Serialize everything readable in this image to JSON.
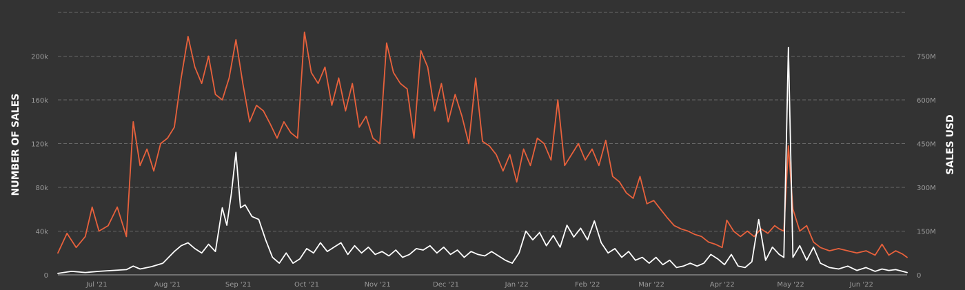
{
  "chart_data": {
    "type": "line",
    "title": "",
    "ylabel_left": "NUMBER OF SALES",
    "ylabel_right": "SALES USD",
    "x_tick_labels": [
      "Jul '21",
      "Aug '21",
      "Sep '21",
      "Oct '21",
      "Nov '21",
      "Dec '21",
      "Jan '22",
      "Feb '22",
      "Mar '22",
      "Apr '22",
      "May '22",
      "Jun '22"
    ],
    "x_tick_dates": [
      "2021-07-01",
      "2021-08-01",
      "2021-09-01",
      "2021-10-01",
      "2021-11-01",
      "2021-12-01",
      "2022-01-01",
      "2022-02-01",
      "2022-03-01",
      "2022-04-01",
      "2022-05-01",
      "2022-06-01"
    ],
    "x_range": [
      "2021-06-14",
      "2022-06-21"
    ],
    "y_left": {
      "ticks": [
        0,
        40000,
        80000,
        120000,
        160000,
        200000
      ],
      "tick_labels": [
        "0",
        "40k",
        "80k",
        "120k",
        "160k",
        "200k"
      ],
      "range": [
        0,
        240000
      ]
    },
    "y_right": {
      "ticks": [
        0,
        150000000,
        300000000,
        450000000,
        600000000,
        750000000
      ],
      "tick_labels": [
        "0",
        "150M",
        "300M",
        "450M",
        "600M",
        "750M"
      ],
      "range": [
        0,
        900000000
      ]
    },
    "grid": true,
    "legend": "none",
    "series": [
      {
        "axis": "left",
        "color": "#e8613c",
        "points": [
          [
            "2021-06-14",
            20000
          ],
          [
            "2021-06-18",
            38000
          ],
          [
            "2021-06-22",
            25000
          ],
          [
            "2021-06-26",
            35000
          ],
          [
            "2021-06-29",
            62000
          ],
          [
            "2021-07-02",
            40000
          ],
          [
            "2021-07-06",
            45000
          ],
          [
            "2021-07-10",
            62000
          ],
          [
            "2021-07-14",
            35000
          ],
          [
            "2021-07-17",
            140000
          ],
          [
            "2021-07-20",
            100000
          ],
          [
            "2021-07-23",
            115000
          ],
          [
            "2021-07-26",
            95000
          ],
          [
            "2021-07-29",
            120000
          ],
          [
            "2021-08-01",
            125000
          ],
          [
            "2021-08-04",
            135000
          ],
          [
            "2021-08-07",
            180000
          ],
          [
            "2021-08-10",
            218000
          ],
          [
            "2021-08-13",
            190000
          ],
          [
            "2021-08-16",
            175000
          ],
          [
            "2021-08-19",
            200000
          ],
          [
            "2021-08-22",
            165000
          ],
          [
            "2021-08-25",
            160000
          ],
          [
            "2021-08-28",
            180000
          ],
          [
            "2021-08-31",
            215000
          ],
          [
            "2021-09-03",
            175000
          ],
          [
            "2021-09-06",
            140000
          ],
          [
            "2021-09-09",
            155000
          ],
          [
            "2021-09-12",
            150000
          ],
          [
            "2021-09-15",
            138000
          ],
          [
            "2021-09-18",
            125000
          ],
          [
            "2021-09-21",
            140000
          ],
          [
            "2021-09-24",
            130000
          ],
          [
            "2021-09-27",
            125000
          ],
          [
            "2021-09-30",
            222000
          ],
          [
            "2021-10-03",
            185000
          ],
          [
            "2021-10-06",
            175000
          ],
          [
            "2021-10-09",
            190000
          ],
          [
            "2021-10-12",
            155000
          ],
          [
            "2021-10-15",
            180000
          ],
          [
            "2021-10-18",
            150000
          ],
          [
            "2021-10-21",
            175000
          ],
          [
            "2021-10-24",
            135000
          ],
          [
            "2021-10-27",
            145000
          ],
          [
            "2021-10-30",
            125000
          ],
          [
            "2021-11-02",
            120000
          ],
          [
            "2021-11-05",
            212000
          ],
          [
            "2021-11-08",
            185000
          ],
          [
            "2021-11-11",
            175000
          ],
          [
            "2021-11-14",
            170000
          ],
          [
            "2021-11-17",
            125000
          ],
          [
            "2021-11-20",
            205000
          ],
          [
            "2021-11-23",
            190000
          ],
          [
            "2021-11-26",
            150000
          ],
          [
            "2021-11-29",
            175000
          ],
          [
            "2021-12-02",
            140000
          ],
          [
            "2021-12-05",
            165000
          ],
          [
            "2021-12-08",
            145000
          ],
          [
            "2021-12-11",
            120000
          ],
          [
            "2021-12-14",
            180000
          ],
          [
            "2021-12-17",
            122000
          ],
          [
            "2021-12-20",
            118000
          ],
          [
            "2021-12-23",
            110000
          ],
          [
            "2021-12-26",
            95000
          ],
          [
            "2021-12-29",
            110000
          ],
          [
            "2022-01-01",
            85000
          ],
          [
            "2022-01-04",
            115000
          ],
          [
            "2022-01-07",
            100000
          ],
          [
            "2022-01-10",
            125000
          ],
          [
            "2022-01-13",
            120000
          ],
          [
            "2022-01-16",
            105000
          ],
          [
            "2022-01-19",
            160000
          ],
          [
            "2022-01-22",
            100000
          ],
          [
            "2022-01-25",
            110000
          ],
          [
            "2022-01-28",
            120000
          ],
          [
            "2022-01-31",
            105000
          ],
          [
            "2022-02-03",
            115000
          ],
          [
            "2022-02-06",
            100000
          ],
          [
            "2022-02-09",
            123000
          ],
          [
            "2022-02-12",
            90000
          ],
          [
            "2022-02-15",
            85000
          ],
          [
            "2022-02-18",
            75000
          ],
          [
            "2022-02-21",
            70000
          ],
          [
            "2022-02-24",
            90000
          ],
          [
            "2022-02-27",
            65000
          ],
          [
            "2022-03-02",
            68000
          ],
          [
            "2022-03-05",
            60000
          ],
          [
            "2022-03-08",
            52000
          ],
          [
            "2022-03-11",
            45000
          ],
          [
            "2022-03-14",
            42000
          ],
          [
            "2022-03-17",
            40000
          ],
          [
            "2022-03-20",
            37000
          ],
          [
            "2022-03-23",
            35000
          ],
          [
            "2022-03-26",
            30000
          ],
          [
            "2022-03-29",
            28000
          ],
          [
            "2022-04-01",
            25000
          ],
          [
            "2022-04-03",
            50000
          ],
          [
            "2022-04-06",
            40000
          ],
          [
            "2022-04-09",
            35000
          ],
          [
            "2022-04-12",
            40000
          ],
          [
            "2022-04-15",
            35000
          ],
          [
            "2022-04-18",
            42000
          ],
          [
            "2022-04-21",
            38000
          ],
          [
            "2022-04-24",
            45000
          ],
          [
            "2022-04-26",
            42000
          ],
          [
            "2022-04-28",
            40000
          ],
          [
            "2022-04-30",
            118000
          ],
          [
            "2022-05-02",
            60000
          ],
          [
            "2022-05-05",
            40000
          ],
          [
            "2022-05-08",
            45000
          ],
          [
            "2022-05-11",
            30000
          ],
          [
            "2022-05-14",
            25000
          ],
          [
            "2022-05-18",
            22000
          ],
          [
            "2022-05-22",
            24000
          ],
          [
            "2022-05-26",
            22000
          ],
          [
            "2022-05-30",
            20000
          ],
          [
            "2022-06-03",
            22000
          ],
          [
            "2022-06-07",
            18000
          ],
          [
            "2022-06-10",
            28000
          ],
          [
            "2022-06-13",
            18000
          ],
          [
            "2022-06-16",
            22000
          ],
          [
            "2022-06-19",
            19000
          ],
          [
            "2022-06-21",
            16000
          ]
        ]
      },
      {
        "axis": "right",
        "color": "#ffffff",
        "points": [
          [
            "2021-06-14",
            5000000
          ],
          [
            "2021-06-20",
            12000000
          ],
          [
            "2021-06-26",
            8000000
          ],
          [
            "2021-07-02",
            12000000
          ],
          [
            "2021-07-08",
            15000000
          ],
          [
            "2021-07-14",
            18000000
          ],
          [
            "2021-07-17",
            30000000
          ],
          [
            "2021-07-20",
            20000000
          ],
          [
            "2021-07-25",
            28000000
          ],
          [
            "2021-07-30",
            40000000
          ],
          [
            "2021-08-04",
            80000000
          ],
          [
            "2021-08-07",
            100000000
          ],
          [
            "2021-08-10",
            110000000
          ],
          [
            "2021-08-13",
            90000000
          ],
          [
            "2021-08-16",
            75000000
          ],
          [
            "2021-08-19",
            105000000
          ],
          [
            "2021-08-22",
            80000000
          ],
          [
            "2021-08-25",
            230000000
          ],
          [
            "2021-08-27",
            170000000
          ],
          [
            "2021-08-29",
            280000000
          ],
          [
            "2021-08-31",
            420000000
          ],
          [
            "2021-09-02",
            230000000
          ],
          [
            "2021-09-04",
            240000000
          ],
          [
            "2021-09-07",
            200000000
          ],
          [
            "2021-09-10",
            190000000
          ],
          [
            "2021-09-13",
            120000000
          ],
          [
            "2021-09-16",
            60000000
          ],
          [
            "2021-09-19",
            40000000
          ],
          [
            "2021-09-22",
            75000000
          ],
          [
            "2021-09-25",
            40000000
          ],
          [
            "2021-09-28",
            55000000
          ],
          [
            "2021-10-01",
            90000000
          ],
          [
            "2021-10-04",
            75000000
          ],
          [
            "2021-10-07",
            110000000
          ],
          [
            "2021-10-10",
            80000000
          ],
          [
            "2021-10-13",
            95000000
          ],
          [
            "2021-10-16",
            110000000
          ],
          [
            "2021-10-19",
            70000000
          ],
          [
            "2021-10-22",
            100000000
          ],
          [
            "2021-10-25",
            75000000
          ],
          [
            "2021-10-28",
            95000000
          ],
          [
            "2021-10-31",
            70000000
          ],
          [
            "2021-11-03",
            80000000
          ],
          [
            "2021-11-06",
            65000000
          ],
          [
            "2021-11-09",
            85000000
          ],
          [
            "2021-11-12",
            60000000
          ],
          [
            "2021-11-15",
            70000000
          ],
          [
            "2021-11-18",
            90000000
          ],
          [
            "2021-11-21",
            85000000
          ],
          [
            "2021-11-24",
            100000000
          ],
          [
            "2021-11-27",
            75000000
          ],
          [
            "2021-11-30",
            95000000
          ],
          [
            "2021-12-03",
            70000000
          ],
          [
            "2021-12-06",
            85000000
          ],
          [
            "2021-12-09",
            60000000
          ],
          [
            "2021-12-12",
            80000000
          ],
          [
            "2021-12-15",
            70000000
          ],
          [
            "2021-12-18",
            65000000
          ],
          [
            "2021-12-21",
            80000000
          ],
          [
            "2021-12-24",
            65000000
          ],
          [
            "2021-12-27",
            50000000
          ],
          [
            "2021-12-30",
            40000000
          ],
          [
            "2022-01-02",
            75000000
          ],
          [
            "2022-01-05",
            150000000
          ],
          [
            "2022-01-08",
            120000000
          ],
          [
            "2022-01-11",
            145000000
          ],
          [
            "2022-01-14",
            100000000
          ],
          [
            "2022-01-17",
            135000000
          ],
          [
            "2022-01-20",
            95000000
          ],
          [
            "2022-01-23",
            170000000
          ],
          [
            "2022-01-26",
            130000000
          ],
          [
            "2022-01-29",
            160000000
          ],
          [
            "2022-02-01",
            120000000
          ],
          [
            "2022-02-04",
            185000000
          ],
          [
            "2022-02-07",
            110000000
          ],
          [
            "2022-02-10",
            75000000
          ],
          [
            "2022-02-13",
            90000000
          ],
          [
            "2022-02-16",
            60000000
          ],
          [
            "2022-02-19",
            80000000
          ],
          [
            "2022-02-22",
            50000000
          ],
          [
            "2022-02-25",
            60000000
          ],
          [
            "2022-02-28",
            40000000
          ],
          [
            "2022-03-03",
            60000000
          ],
          [
            "2022-03-06",
            35000000
          ],
          [
            "2022-03-09",
            50000000
          ],
          [
            "2022-03-12",
            25000000
          ],
          [
            "2022-03-15",
            30000000
          ],
          [
            "2022-03-18",
            40000000
          ],
          [
            "2022-03-21",
            30000000
          ],
          [
            "2022-03-24",
            40000000
          ],
          [
            "2022-03-27",
            70000000
          ],
          [
            "2022-03-30",
            55000000
          ],
          [
            "2022-04-02",
            35000000
          ],
          [
            "2022-04-05",
            70000000
          ],
          [
            "2022-04-08",
            30000000
          ],
          [
            "2022-04-11",
            25000000
          ],
          [
            "2022-04-14",
            45000000
          ],
          [
            "2022-04-17",
            190000000
          ],
          [
            "2022-04-20",
            50000000
          ],
          [
            "2022-04-23",
            95000000
          ],
          [
            "2022-04-26",
            70000000
          ],
          [
            "2022-04-28",
            60000000
          ],
          [
            "2022-04-30",
            780000000
          ],
          [
            "2022-05-02",
            60000000
          ],
          [
            "2022-05-05",
            100000000
          ],
          [
            "2022-05-08",
            50000000
          ],
          [
            "2022-05-11",
            95000000
          ],
          [
            "2022-05-14",
            40000000
          ],
          [
            "2022-05-18",
            25000000
          ],
          [
            "2022-05-22",
            20000000
          ],
          [
            "2022-05-26",
            30000000
          ],
          [
            "2022-05-30",
            15000000
          ],
          [
            "2022-06-03",
            25000000
          ],
          [
            "2022-06-07",
            12000000
          ],
          [
            "2022-06-10",
            20000000
          ],
          [
            "2022-06-13",
            15000000
          ],
          [
            "2022-06-16",
            18000000
          ],
          [
            "2022-06-19",
            12000000
          ],
          [
            "2022-06-21",
            8000000
          ]
        ]
      }
    ]
  }
}
